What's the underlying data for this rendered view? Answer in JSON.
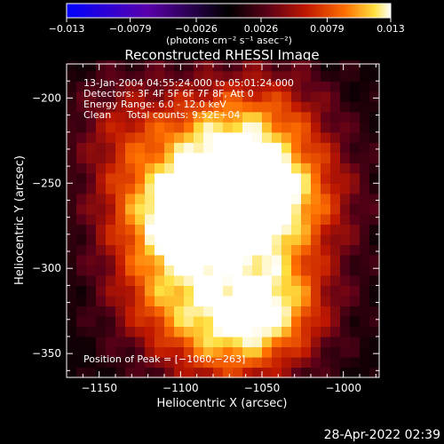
{
  "chart_data": {
    "type": "heatmap",
    "title": "Reconstructed RHESSI Image",
    "xlabel": "Heliocentric X (arcsec)",
    "ylabel": "Heliocentric Y (arcsec)",
    "xlim": [
      -1170,
      -978
    ],
    "ylim": [
      -364,
      -180
    ],
    "xticks": [
      -1150,
      -1100,
      -1050,
      -1000
    ],
    "yticks": [
      -200,
      -250,
      -300,
      -350
    ],
    "xtick_labels": [
      "−1150",
      "−1100",
      "−1050",
      "−1000"
    ],
    "ytick_labels": [
      "−200",
      "−250",
      "−300",
      "−350"
    ],
    "colorbar": {
      "min": -0.013,
      "max": 0.013,
      "tick_values": [
        -0.013,
        -0.0079,
        -0.0026,
        0.0026,
        0.0079,
        0.013
      ],
      "tick_labels": [
        "−0.013",
        "−0.0079",
        "−0.0026",
        "0.0026",
        "0.0079",
        "0.013"
      ],
      "unit_label": "(photons cm⁻² s⁻¹ asec⁻²)"
    },
    "annotations": [
      "13-Jan-2004 04:55:24.000 to 05:01:24.000",
      "Detectors: 3F 4F 5F 6F 7F 8F, Att 0",
      "Energy Range: 6.0 - 12.0 keV",
      "Clean     Total counts: 9.52E+04"
    ],
    "peak_label": "Position of Peak = [−1060,−263]",
    "peak": [
      -1060,
      -263
    ],
    "sources": [
      {
        "x": -1088,
        "y": -272,
        "value": 0.0126
      },
      {
        "x": -1060,
        "y": -263,
        "value": 0.013
      },
      {
        "x": -1043,
        "y": -322,
        "value": 0.0085
      },
      {
        "x": -1078,
        "y": -228,
        "value": 0.0075
      },
      {
        "x": -1120,
        "y": -265,
        "value": 0.0062
      },
      {
        "x": -1028,
        "y": -258,
        "value": 0.0066
      },
      {
        "x": -1075,
        "y": -340,
        "value": 0.0058
      },
      {
        "x": -1110,
        "y": -315,
        "value": 0.0056
      },
      {
        "x": -1040,
        "y": -212,
        "value": 0.0042
      },
      {
        "x": -1135,
        "y": -215,
        "value": 0.004
      }
    ],
    "background_level": 0.0005
  },
  "footer": {
    "timestamp": "28-Apr-2022 02:39"
  }
}
